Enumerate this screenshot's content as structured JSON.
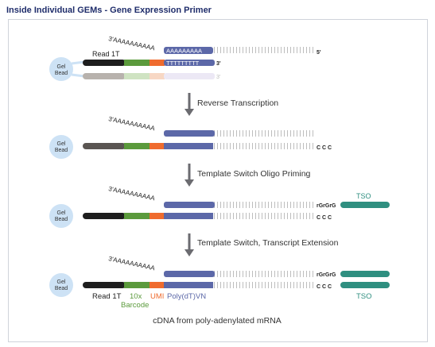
{
  "title": "Inside Individual GEMs - Gene Expression Primer",
  "bead_label_line1": "Gel",
  "bead_label_line2": "Bead",
  "polyA_tail": "3'AAAAAAAAAA",
  "mrna_polyA": "AAAAAAAAA",
  "mrna_5prime": "5'",
  "polyT": "TTTTTTTTT",
  "primer_3prime": "3'",
  "ccc": "C C C",
  "rGrGrG": "rGrGrG",
  "steps": [
    {
      "label": "Reverse Transcription"
    },
    {
      "label": "Template Switch Oligo Priming"
    },
    {
      "label": "Template Switch, Transcript Extension"
    }
  ],
  "segments": {
    "read1t": "Read 1T",
    "barcode_line1": "10x",
    "barcode_line2": "Barcode",
    "umi": "UMI",
    "polydt": "Poly(dT)VN",
    "tso": "TSO"
  },
  "first_read1t_label": "Read 1T",
  "tso_top_label": "TSO",
  "caption": "cDNA from poly-adenylated mRNA",
  "colors": {
    "title": "#1f2d6b",
    "read1t": "#1e1e1e",
    "read1t_faded": "#b8b2ad",
    "read1t_mid": "#5a5552",
    "barcode": "#5b9a3c",
    "barcode_faded": "#cfe3c2",
    "umi": "#ef6b2e",
    "umi_faded": "#f7d7c4",
    "polydt": "#5c68a8",
    "polydt_faded": "#ece8f5",
    "tso": "#2f8f80",
    "bead": "#cde2f5",
    "arrow": "#6b6b70",
    "mrna": "#bdbdbd"
  }
}
